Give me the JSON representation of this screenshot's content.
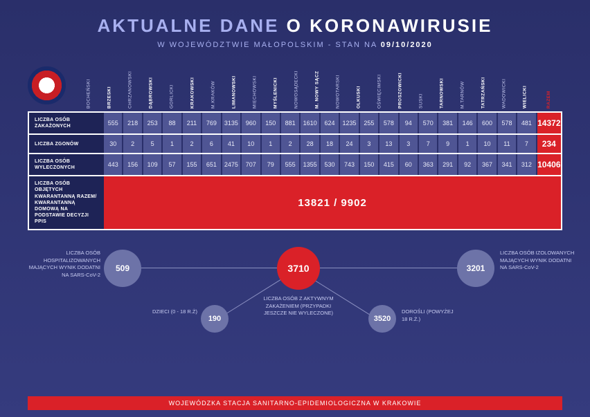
{
  "header": {
    "title_light": "AKTUALNE DANE",
    "title_bold": "O KORONAWIRUSIE",
    "subtitle_prefix": "W WOJEWÓDZTWIE MAŁOPOLSKIM - STAN NA",
    "date": "09/10/2020"
  },
  "columns": [
    {
      "label": "BOCHEŃSKI",
      "bold": false
    },
    {
      "label": "BRZESKI",
      "bold": true
    },
    {
      "label": "CHRZANOWSKI",
      "bold": false
    },
    {
      "label": "DĄBROWSKI",
      "bold": true
    },
    {
      "label": "GORLICKI",
      "bold": false
    },
    {
      "label": "KRAKOWSKI",
      "bold": true
    },
    {
      "label": "M.KRAKÓW",
      "bold": false
    },
    {
      "label": "LIMANOWSKI",
      "bold": true
    },
    {
      "label": "MIECHOWSKI",
      "bold": false
    },
    {
      "label": "MYŚLENICKI",
      "bold": true
    },
    {
      "label": "NOWOSĄDECKI",
      "bold": false
    },
    {
      "label": "M. NOWY SĄCZ",
      "bold": true
    },
    {
      "label": "NOWOTARSKI",
      "bold": false
    },
    {
      "label": "OLKUSKI",
      "bold": true
    },
    {
      "label": "OŚWIĘCIMSKI",
      "bold": false
    },
    {
      "label": "PROSZOWICKI",
      "bold": true
    },
    {
      "label": "SUSKI",
      "bold": false
    },
    {
      "label": "TARNOWSKI",
      "bold": true
    },
    {
      "label": "M.TARNÓW",
      "bold": false
    },
    {
      "label": "TATRZAŃSKI",
      "bold": true
    },
    {
      "label": "WADOWICKI",
      "bold": false
    },
    {
      "label": "WIELICKI",
      "bold": true
    },
    {
      "label": "RAZEM",
      "bold": true,
      "razem": true
    }
  ],
  "rows": [
    {
      "label": "LICZBA OSÓB ZAKAŻONYCH",
      "values": [
        "555",
        "218",
        "253",
        "88",
        "211",
        "769",
        "3135",
        "960",
        "150",
        "881",
        "1610",
        "624",
        "1235",
        "255",
        "578",
        "94",
        "570",
        "381",
        "146",
        "600",
        "578",
        "481"
      ],
      "total": "14372"
    },
    {
      "label": "LICZBA ZGONÓW",
      "values": [
        "30",
        "2",
        "5",
        "1",
        "2",
        "6",
        "41",
        "10",
        "1",
        "2",
        "28",
        "18",
        "24",
        "3",
        "13",
        "3",
        "7",
        "9",
        "1",
        "10",
        "11",
        "7"
      ],
      "total": "234"
    },
    {
      "label": "LICZBA OSÓB WYLECZONYCH",
      "values": [
        "443",
        "156",
        "109",
        "57",
        "155",
        "651",
        "2475",
        "707",
        "79",
        "555",
        "1355",
        "530",
        "743",
        "150",
        "415",
        "60",
        "363",
        "291",
        "92",
        "367",
        "341",
        "312"
      ],
      "total": "10406"
    }
  ],
  "quarantine": {
    "label": "LICZBA OSÓB OBJĘTYCH KWARANTANNĄ RAZEM/ KWARANTANNĄ DOMOWĄ NA PODSTAWIE DECYZJI PPIS",
    "value": "13821 / 9902"
  },
  "diagram": {
    "hospitalized": {
      "value": "509",
      "label": "LICZBA OSÓB HOSPITALIZOWANYCH MAJĄCYCH WYNIK DODATNI NA SARS-CoV-2"
    },
    "isolated": {
      "value": "3201",
      "label": "LICZBA OSÓB IZOLOWANYCH MAJĄCYCH WYNIK DODATNI NA SARS-CoV-2"
    },
    "active": {
      "value": "3710",
      "label": "LICZBA OSÓB Z AKTYWNYM ZAKAŻENIEM (PRZYPADKI JESZCZE NIE WYLECZONE)"
    },
    "children": {
      "value": "190",
      "label": "DZIECI (0 - 18 R.Ż)"
    },
    "adults": {
      "value": "3520",
      "label": "DOROŚLI (POWYŻEJ 18 R.Ż.)"
    }
  },
  "footer": "WOJEWÓDZKA STACJA SANITARNO-EPIDEMIOLOGICZNA W KRAKOWIE",
  "colors": {
    "bg_top": "#2a2f6a",
    "bg_bottom": "#353b7e",
    "accent_red": "#da2128",
    "cell_bg": "#4f5594",
    "label_bg": "#1e2356",
    "node_grey": "#6d73a8",
    "text_light": "#c9cdf2"
  }
}
